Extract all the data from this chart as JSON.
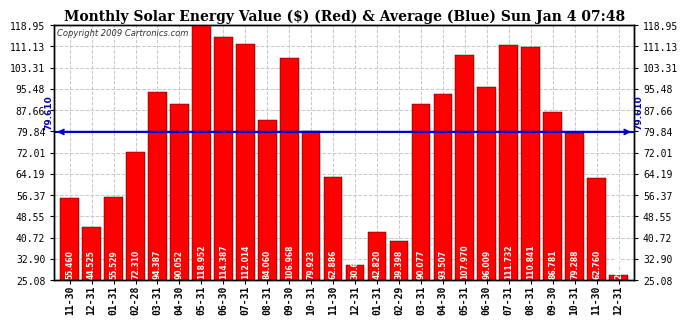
{
  "categories": [
    "11-30",
    "12-31",
    "01-31",
    "02-28",
    "03-31",
    "04-30",
    "05-31",
    "06-30",
    "07-31",
    "08-31",
    "09-30",
    "10-31",
    "11-30",
    "12-31",
    "01-31",
    "02-29",
    "03-31",
    "04-30",
    "05-31",
    "06-30",
    "07-31",
    "08-31",
    "09-30",
    "10-31",
    "11-30",
    "12-31"
  ],
  "values": [
    55.46,
    44.525,
    55.529,
    72.31,
    94.387,
    90.052,
    118.952,
    114.387,
    112.014,
    84.06,
    106.968,
    79.923,
    62.886,
    30.601,
    42.82,
    39.398,
    90.077,
    93.507,
    107.97,
    96.009,
    111.732,
    110.841,
    86.781,
    79.288,
    62.76,
    26.918
  ],
  "average": 79.61,
  "bar_color": "#ff0000",
  "avg_line_color": "#0000cc",
  "title": "Monthly Solar Energy Value ($) (Red) & Average (Blue) Sun Jan 4 07:48",
  "copyright": "Copyright 2009 Cartronics.com",
  "ymin": 25.08,
  "ymax": 118.95,
  "yticks": [
    25.08,
    32.9,
    40.72,
    48.55,
    56.37,
    64.19,
    72.01,
    79.84,
    87.66,
    95.48,
    103.31,
    111.13,
    118.95
  ],
  "avg_label": "79.610",
  "background_color": "#ffffff",
  "grid_color": "#c8c8c8",
  "bar_edge_color": "#000000",
  "title_fontsize": 10,
  "tick_fontsize": 7,
  "value_fontsize": 5.5,
  "copyright_fontsize": 6
}
